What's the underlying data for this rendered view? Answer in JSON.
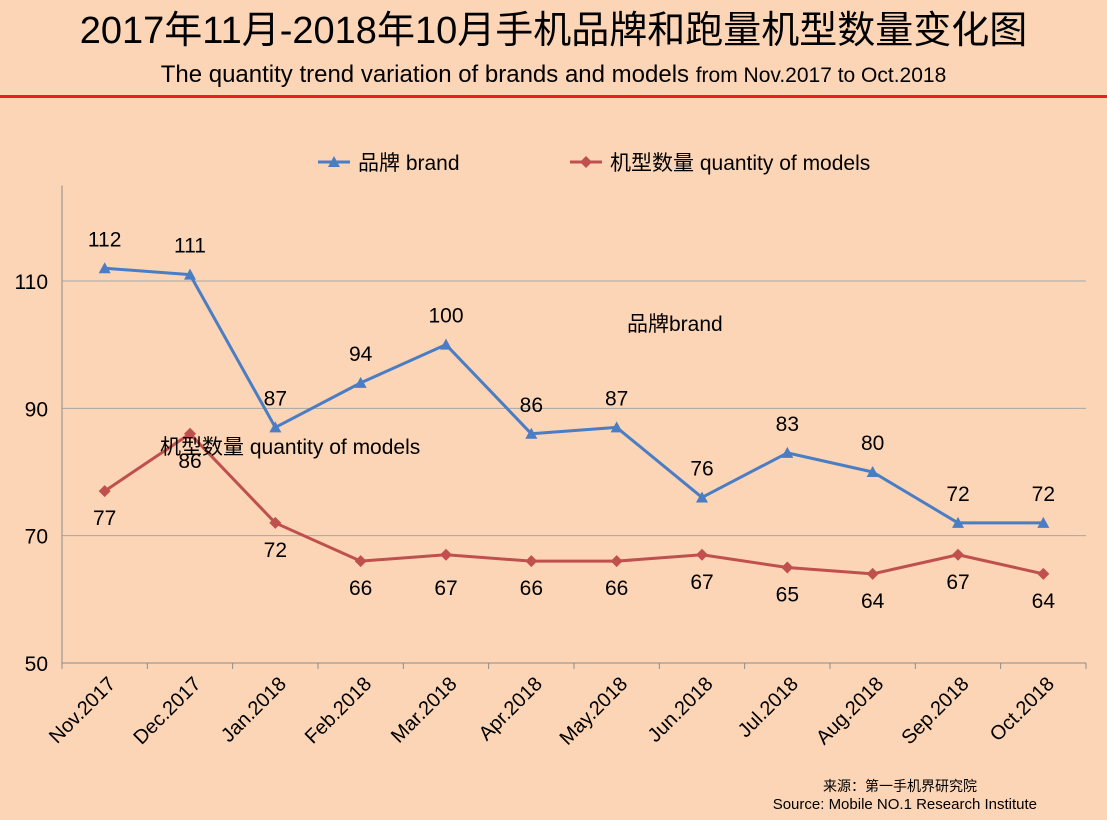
{
  "title_cn": "2017年11月-2018年10月手机品牌和跑量机型数量变化图",
  "title_en_main": "The quantity trend variation of brands and models",
  "title_en_range": "from  Nov.2017 to Oct.2018",
  "source_cn": "来源：第一手机界研究院",
  "source_en": "Source: Mobile NO.1 Research Institute",
  "colors": {
    "brand": "#4a7dc4",
    "models": "#c0504d",
    "background": "#fbd5b6",
    "grid": "#a6a6a6",
    "accent_rule": "#e52020"
  },
  "chart_data": {
    "type": "line",
    "categories": [
      "Nov.2017",
      "Dec.2017",
      "Jan.2018",
      "Feb.2018",
      "Mar.2018",
      "Apr.2018",
      "May.2018",
      "Jun.2018",
      "Jul.2018",
      "Aug.2018",
      "Sep.2018",
      "Oct.2018"
    ],
    "series": [
      {
        "name": "品牌 brand",
        "marker": "triangle",
        "values": [
          112,
          111,
          87,
          94,
          100,
          86,
          87,
          76,
          83,
          80,
          72,
          72
        ]
      },
      {
        "name": "机型数量 quantity of models",
        "marker": "diamond",
        "values": [
          77,
          86,
          72,
          66,
          67,
          66,
          66,
          67,
          65,
          64,
          67,
          64
        ]
      }
    ],
    "ylim": [
      50,
      125
    ],
    "yticks": [
      50,
      70,
      90,
      110
    ],
    "grid": true,
    "legend_position": "top",
    "annotations": [
      {
        "text": "品牌brand",
        "series": 0
      },
      {
        "text": "机型数量 quantity of models",
        "series": 1
      }
    ]
  }
}
